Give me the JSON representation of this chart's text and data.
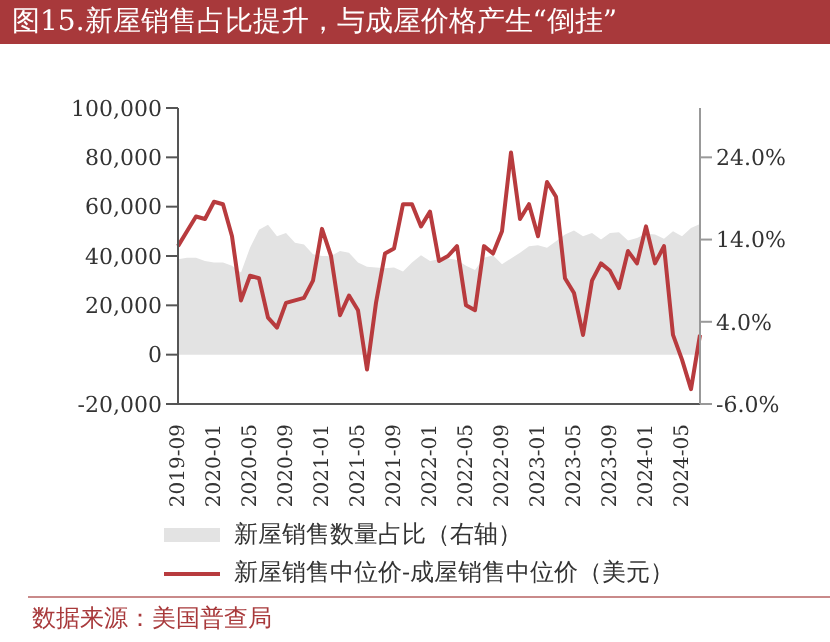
{
  "chart_data": {
    "type": "line",
    "title": "图15.新屋销售占比提升，与成屋价格产生“倒挂”",
    "categories": [
      "2019-09",
      null,
      null,
      null,
      "2020-01",
      null,
      null,
      null,
      "2020-05",
      null,
      null,
      null,
      "2020-09",
      null,
      null,
      null,
      "2021-01",
      null,
      null,
      null,
      "2021-05",
      null,
      null,
      null,
      "2021-09",
      null,
      null,
      null,
      "2022-01",
      null,
      null,
      null,
      "2022-05",
      null,
      null,
      null,
      "2022-09",
      null,
      null,
      null,
      "2023-01",
      null,
      null,
      null,
      "2023-05",
      null,
      null,
      null,
      "2023-09",
      null,
      null,
      null,
      "2024-01",
      null,
      null,
      null,
      "2024-05",
      null,
      null
    ],
    "series": [
      {
        "name": "新屋销售数量占比（右轴）",
        "type": "area",
        "axis": "y2",
        "color": "#e3e3e3",
        "values": [
          11.6,
          11.8,
          11.8,
          11.4,
          11.2,
          11.2,
          10.8,
          10.0,
          13.0,
          15.2,
          15.8,
          14.4,
          14.8,
          13.6,
          13.4,
          12.2,
          12.0,
          12.0,
          12.6,
          12.4,
          11.2,
          10.7,
          10.6,
          10.5,
          10.6,
          10.1,
          11.2,
          12.1,
          11.4,
          11.6,
          11.7,
          11.5,
          10.8,
          10.3,
          11.8,
          12.1,
          11.0,
          11.7,
          12.4,
          13.2,
          13.3,
          13.0,
          13.8,
          14.6,
          15.1,
          14.4,
          14.8,
          14.0,
          14.8,
          14.9,
          13.9,
          14.2,
          14.7,
          14.6,
          14.1,
          15.0,
          14.4,
          15.4,
          15.9
        ]
      },
      {
        "name": "新屋销售中位价-成屋销售中位价（美元）",
        "color": "#b83b3e",
        "values": [
          44000,
          50000,
          56000,
          55000,
          62000,
          61000,
          48000,
          22000,
          32000,
          31000,
          15000,
          11000,
          21000,
          22000,
          23000,
          30000,
          51000,
          40000,
          16000,
          24000,
          18000,
          -6000,
          21000,
          41000,
          43000,
          61000,
          61000,
          52000,
          58000,
          38000,
          40000,
          44000,
          20000,
          18000,
          44000,
          41000,
          50000,
          82000,
          55000,
          61000,
          48000,
          70000,
          64000,
          31000,
          25000,
          8000,
          30000,
          37000,
          34000,
          27000,
          42000,
          37000,
          52000,
          37000,
          44000,
          8000,
          -2000,
          -14000,
          8000
        ]
      }
    ],
    "ylim": [
      -20000,
      100000
    ],
    "yticks": [
      {
        "value": -20000,
        "label": "-20,000"
      },
      {
        "value": 0,
        "label": "0"
      },
      {
        "value": 20000,
        "label": "20,000"
      },
      {
        "value": 40000,
        "label": "40,000"
      },
      {
        "value": 60000,
        "label": "60,000"
      },
      {
        "value": 80000,
        "label": "80,000"
      },
      {
        "value": 100000,
        "label": "100,000"
      }
    ],
    "y2lim": [
      -6,
      30
    ],
    "y2ticks": [
      {
        "value": -6,
        "label": "-6.0%"
      },
      {
        "value": 4,
        "label": "4.0%"
      },
      {
        "value": 14,
        "label": "14.0%"
      },
      {
        "value": 24,
        "label": "24.0%"
      }
    ],
    "grid": false,
    "legend": "bottom",
    "annotations": [
      "数据来源：美国普查局"
    ]
  }
}
